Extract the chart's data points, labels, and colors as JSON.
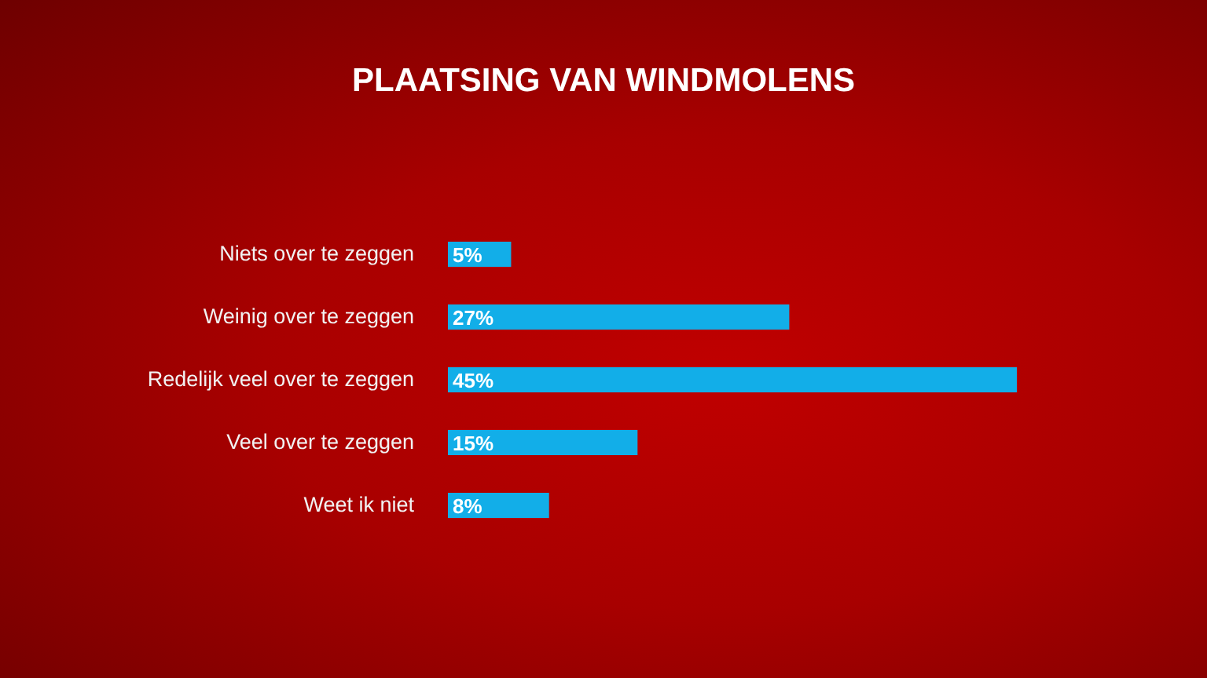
{
  "chart_data": {
    "type": "bar",
    "orientation": "horizontal",
    "title": "PLAATSING VAN WINDMOLENS",
    "categories": [
      "Niets over te zeggen",
      "Weinig over te zeggen",
      "Redelijk veel over te zeggen",
      "Veel over te zeggen",
      "Weet ik niet"
    ],
    "values": [
      5,
      27,
      45,
      15,
      8
    ],
    "value_labels": [
      "5%",
      "27%",
      "45%",
      "15%",
      "8%"
    ],
    "color": "#12aee8"
  }
}
